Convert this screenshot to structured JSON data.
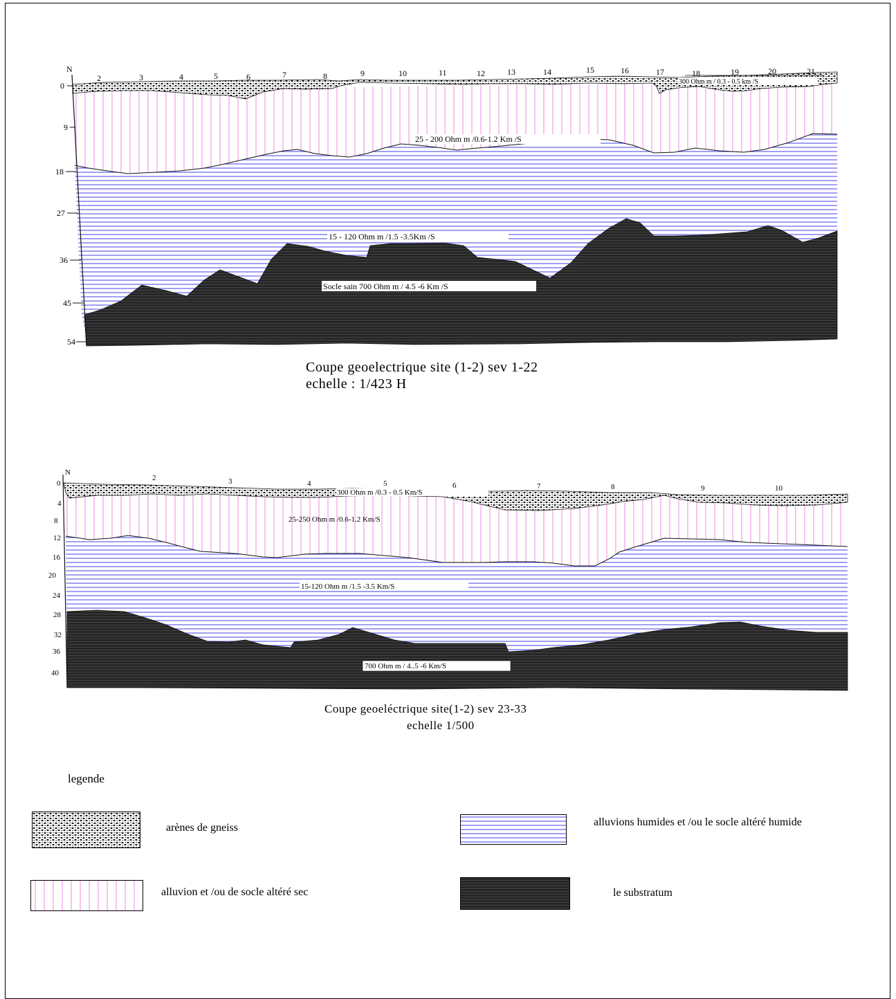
{
  "section1": {
    "title_line1": "Coupe geoelectrique site (1-2) sev 1-22",
    "title_line2": "echelle : 1/423 H",
    "north": "N",
    "depth_ticks": [
      "0",
      "9",
      "18",
      "27",
      "36",
      "45",
      "54"
    ],
    "station_ticks": [
      "2",
      "3",
      "4",
      "5",
      "6",
      "7",
      "8",
      "9",
      "10",
      "11",
      "12",
      "13",
      "14",
      "15",
      "16",
      "17",
      "18",
      "19",
      "20",
      "21"
    ],
    "layer_labels": {
      "surface": "300 Ohm m  / 0.3 - 0.5 km /S",
      "dry": "25 - 200 Ohm m /0.6-1.2 Km /S",
      "wet": "15 - 120 Ohm m /1.5 -3.5Km /S",
      "substratum": "Socle sain  700 Ohm m / 4.5 -6 Km /S"
    }
  },
  "section2": {
    "title_line1": "Coupe geoeléctrique site(1-2) sev 23-33",
    "title_line2": "echelle 1/500",
    "north": "N",
    "depth_ticks": [
      "0",
      "4",
      "8",
      "12",
      "16",
      "20",
      "24",
      "28",
      "32",
      "36",
      "40"
    ],
    "station_ticks": [
      "2",
      "3",
      "4",
      "5",
      "6",
      "7",
      "8",
      "9",
      "10"
    ],
    "layer_labels": {
      "surface": "300 Ohm m /0.3 - 0.5 Km/S",
      "dry": "25-250 Ohm m /0.6-1.2 Km/S",
      "wet": "15-120 Ohm m /1.5 -3.5 Km/S",
      "substratum": "700 Ohm m / 4..5 -6 Km/S"
    }
  },
  "legend": {
    "title": "legende",
    "items": [
      {
        "key": "gneiss",
        "label": "arènes de gneiss"
      },
      {
        "key": "wet",
        "label": "alluvions humides et /ou le socle altéré humide"
      },
      {
        "key": "dry",
        "label": "alluvion et /ou de socle altéré sec"
      },
      {
        "key": "substratum",
        "label": "le substratum"
      }
    ]
  },
  "colors": {
    "dry_stripe": "#f4b6ee",
    "wet_stripe": "#6c6cf0",
    "substratum": "#262626",
    "gneiss_dot": "#111111"
  }
}
